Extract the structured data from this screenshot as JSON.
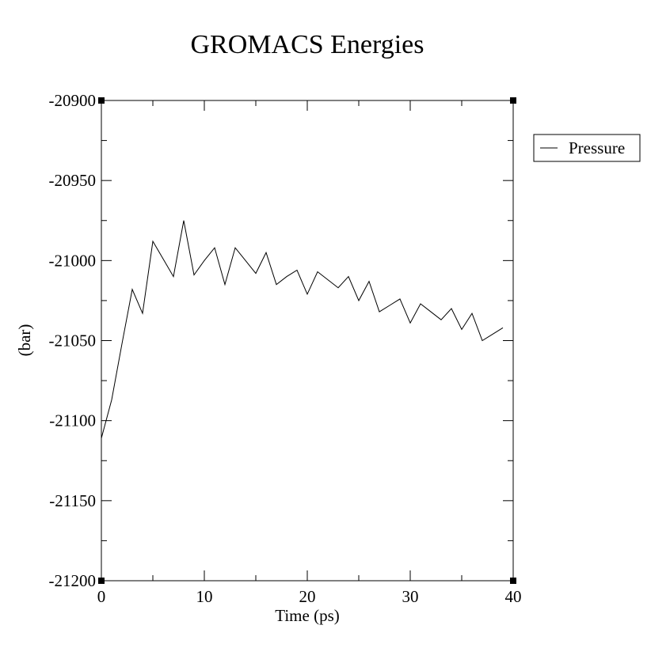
{
  "chart_data": {
    "type": "line",
    "title": "GROMACS Energies",
    "xlabel": "Time (ps)",
    "ylabel": "(bar)",
    "xlim": [
      0,
      40
    ],
    "ylim": [
      -21200,
      -20900
    ],
    "xticks": [
      0,
      10,
      20,
      30,
      40
    ],
    "yticks": [
      -21200,
      -21150,
      -21100,
      -21050,
      -21000,
      -20950,
      -20900
    ],
    "grid": false,
    "legend_position": "right",
    "series": [
      {
        "name": "Pressure",
        "color": "#000000",
        "x": [
          0,
          1,
          2,
          3,
          4,
          5,
          6,
          7,
          8,
          9,
          10,
          11,
          12,
          13,
          14,
          15,
          16,
          17,
          18,
          19,
          20,
          21,
          22,
          23,
          24,
          25,
          26,
          27,
          28,
          29,
          30,
          31,
          32,
          33,
          34,
          35,
          36,
          37,
          38,
          39
        ],
        "y": [
          -21111,
          -21087,
          -21052,
          -21018,
          -21033,
          -20988,
          -20999,
          -21010,
          -20975,
          -21009,
          -21000,
          -20992,
          -21015,
          -20992,
          -21000,
          -21008,
          -20995,
          -21015,
          -21010,
          -21006,
          -21021,
          -21007,
          -21012,
          -21017,
          -21010,
          -21025,
          -21013,
          -21032,
          -21028,
          -21024,
          -21039,
          -21027,
          -21032,
          -21037,
          -21030,
          -21043,
          -21033,
          -21050,
          -21046,
          -21042
        ]
      }
    ]
  }
}
